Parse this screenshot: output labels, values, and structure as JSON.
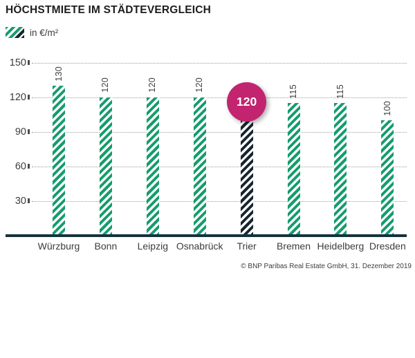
{
  "title": "HÖCHSTMIETE IM STÄDTEVERGLEICH",
  "legend": {
    "label": "in €/m²",
    "swatch": "green-and-dark-diagonal-stripes"
  },
  "source": "© BNP Paribas Real Estate GmbH, 31. Dezember 2019",
  "colors": {
    "green_stripe": "#169c6d",
    "dark_stripe": "#17262f",
    "highlight_magenta": "#c2246f",
    "baseline": "#15323d",
    "text": "#3c3c3b"
  },
  "chart_data": {
    "type": "bar",
    "title": "HÖCHSTMIETE IM STÄDTEVERGLEICH",
    "unit_label": "in €/m²",
    "categories": [
      "Würzburg",
      "Bonn",
      "Leipzig",
      "Osnabrück",
      "Trier",
      "Bremen",
      "Heidelberg",
      "Dresden"
    ],
    "values": [
      130,
      120,
      120,
      120,
      120,
      115,
      115,
      100
    ],
    "highlight": {
      "category": "Trier",
      "value": 120,
      "badge_text": "120",
      "style": "dark-striped-bar-with-magenta-circle-badge"
    },
    "yticks": [
      30,
      60,
      90,
      120,
      150
    ],
    "ylim": [
      0,
      160
    ],
    "grid": "dotted-horizontal",
    "legend_position": "top-left",
    "bar_pattern": "diagonal-stripes",
    "value_label_rotation": -90
  }
}
